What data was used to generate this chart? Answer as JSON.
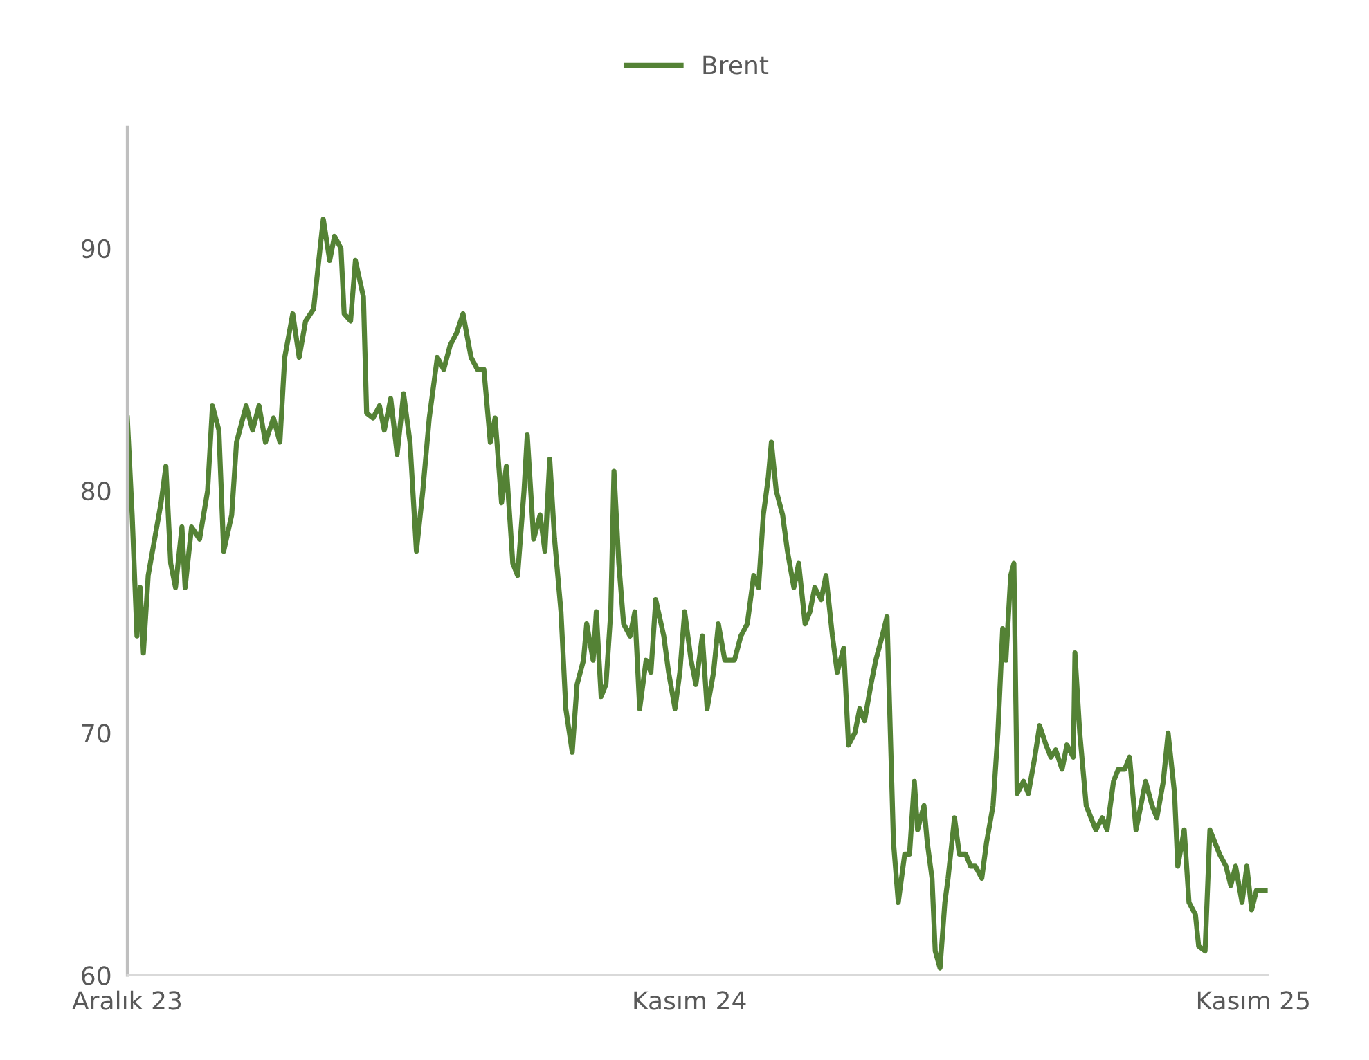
{
  "chart_data": {
    "type": "line",
    "legend": "top",
    "grid": false,
    "marker": "none",
    "line_style": "solid",
    "ylim": [
      60,
      95
    ],
    "yticks": [
      60,
      70,
      80,
      90
    ],
    "xlim": [
      "2023-12-01",
      "2025-11-10"
    ],
    "xticks": [
      {
        "value": "2023-12-01",
        "label": "Aralık 23"
      },
      {
        "value": "2024-11-15",
        "label": "Kasım 24"
      },
      {
        "value": "2025-11-01",
        "label": "Kasım 25"
      }
    ],
    "series": [
      {
        "name": "Brent",
        "color": "#548235",
        "x": [
          "2023-12-01",
          "2023-12-04",
          "2023-12-07",
          "2023-12-09",
          "2023-12-11",
          "2023-12-14",
          "2023-12-18",
          "2023-12-22",
          "2023-12-25",
          "2023-12-28",
          "2023-12-31",
          "2024-01-04",
          "2024-01-06",
          "2024-01-10",
          "2024-01-15",
          "2024-01-20",
          "2024-01-23",
          "2024-01-27",
          "2024-01-30",
          "2024-02-04",
          "2024-02-07",
          "2024-02-13",
          "2024-02-17",
          "2024-02-21",
          "2024-02-25",
          "2024-03-01",
          "2024-03-05",
          "2024-03-08",
          "2024-03-13",
          "2024-03-17",
          "2024-03-21",
          "2024-03-26",
          "2024-03-30",
          "2024-04-01",
          "2024-04-05",
          "2024-04-08",
          "2024-04-12",
          "2024-04-14",
          "2024-04-18",
          "2024-04-21",
          "2024-04-26",
          "2024-04-28",
          "2024-05-02",
          "2024-05-06",
          "2024-05-09",
          "2024-05-13",
          "2024-05-17",
          "2024-05-21",
          "2024-05-25",
          "2024-05-29",
          "2024-06-02",
          "2024-06-06",
          "2024-06-11",
          "2024-06-15",
          "2024-06-19",
          "2024-06-23",
          "2024-06-27",
          "2024-07-02",
          "2024-07-06",
          "2024-07-10",
          "2024-07-14",
          "2024-07-17",
          "2024-07-21",
          "2024-07-24",
          "2024-07-28",
          "2024-07-31",
          "2024-08-04",
          "2024-08-06",
          "2024-08-10",
          "2024-08-14",
          "2024-08-17",
          "2024-08-20",
          "2024-08-23",
          "2024-08-27",
          "2024-08-30",
          "2024-09-03",
          "2024-09-06",
          "2024-09-10",
          "2024-09-12",
          "2024-09-16",
          "2024-09-18",
          "2024-09-21",
          "2024-09-24",
          "2024-09-27",
          "2024-09-29",
          "2024-10-02",
          "2024-10-05",
          "2024-10-09",
          "2024-10-12",
          "2024-10-15",
          "2024-10-19",
          "2024-10-22",
          "2024-10-25",
          "2024-10-30",
          "2024-11-02",
          "2024-11-06",
          "2024-11-09",
          "2024-11-12",
          "2024-11-16",
          "2024-11-19",
          "2024-11-23",
          "2024-11-26",
          "2024-11-30",
          "2024-12-03",
          "2024-12-07",
          "2024-12-13",
          "2024-12-17",
          "2024-12-21",
          "2024-12-25",
          "2024-12-28",
          "2024-12-31",
          "2025-01-03",
          "2025-01-05",
          "2025-01-08",
          "2025-01-12",
          "2025-01-15",
          "2025-01-19",
          "2025-01-22",
          "2025-01-26",
          "2025-01-29",
          "2025-02-01",
          "2025-02-05",
          "2025-02-08",
          "2025-02-12",
          "2025-02-15",
          "2025-02-19",
          "2025-02-22",
          "2025-02-26",
          "2025-03-01",
          "2025-03-04",
          "2025-03-08",
          "2025-03-11",
          "2025-03-15",
          "2025-03-18",
          "2025-03-22",
          "2025-03-25",
          "2025-03-29",
          "2025-04-01",
          "2025-04-04",
          "2025-04-06",
          "2025-04-10",
          "2025-04-12",
          "2025-04-15",
          "2025-04-17",
          "2025-04-20",
          "2025-04-23",
          "2025-04-25",
          "2025-04-29",
          "2025-05-02",
          "2025-05-06",
          "2025-05-09",
          "2025-05-12",
          "2025-05-16",
          "2025-05-19",
          "2025-05-23",
          "2025-05-26",
          "2025-05-29",
          "2025-05-31",
          "2025-06-03",
          "2025-06-05",
          "2025-06-07",
          "2025-06-11",
          "2025-06-14",
          "2025-06-18",
          "2025-06-21",
          "2025-06-25",
          "2025-06-28",
          "2025-07-01",
          "2025-07-05",
          "2025-07-08",
          "2025-07-12",
          "2025-07-13",
          "2025-07-16",
          "2025-07-20",
          "2025-07-23",
          "2025-07-26",
          "2025-07-30",
          "2025-08-02",
          "2025-08-06",
          "2025-08-09",
          "2025-08-13",
          "2025-08-16",
          "2025-08-20",
          "2025-08-23",
          "2025-08-26",
          "2025-08-30",
          "2025-09-02",
          "2025-09-06",
          "2025-09-09",
          "2025-09-13",
          "2025-09-15",
          "2025-09-19",
          "2025-09-22",
          "2025-09-26",
          "2025-09-28",
          "2025-10-02",
          "2025-10-05",
          "2025-10-08",
          "2025-10-11",
          "2025-10-15",
          "2025-10-18",
          "2025-10-21",
          "2025-10-25",
          "2025-10-28",
          "2025-10-31",
          "2025-11-03",
          "2025-11-08",
          "2025-11-10"
        ],
        "values": [
          83,
          79,
          74,
          76,
          73.3,
          76.5,
          78,
          79.5,
          81,
          77,
          76,
          78.5,
          76,
          78.5,
          78,
          80,
          83.5,
          82.5,
          77.5,
          79,
          82,
          83.5,
          82.5,
          83.5,
          82,
          83,
          82,
          85.5,
          87.3,
          85.5,
          87,
          87.5,
          90,
          91.2,
          89.5,
          90.5,
          90,
          87.3,
          87,
          89.5,
          88,
          83.2,
          83,
          83.5,
          82.5,
          83.8,
          81.5,
          84,
          82,
          77.5,
          80,
          83,
          85.5,
          85,
          86,
          86.5,
          87.3,
          85.5,
          85,
          85,
          82,
          83,
          79.5,
          81,
          77,
          76.5,
          80,
          82.3,
          78,
          79,
          77.5,
          81.3,
          78,
          75,
          71,
          69.2,
          72,
          73,
          74.5,
          73,
          75,
          71.5,
          72,
          75,
          80.8,
          77,
          74.5,
          74,
          75,
          71,
          73,
          72.5,
          75.5,
          74,
          72.5,
          71,
          72.5,
          75,
          73,
          72,
          74,
          71,
          72.5,
          74.5,
          73,
          73,
          74,
          74.5,
          76.5,
          76,
          79,
          80.5,
          82,
          80,
          79,
          77.5,
          76,
          77,
          74.5,
          75,
          76,
          75.5,
          76.5,
          74,
          72.5,
          73.5,
          69.5,
          70,
          71,
          70.5,
          72,
          73,
          74,
          74.8,
          65.5,
          63,
          65,
          65,
          68,
          66,
          67,
          65.5,
          64,
          61,
          60.3,
          63,
          64,
          66.5,
          65,
          65,
          64.5,
          64.5,
          64,
          65.5,
          67,
          70,
          74.3,
          73,
          76.5,
          77,
          67.5,
          68,
          67.5,
          69,
          70.3,
          69.5,
          69,
          69.3,
          68.5,
          69.5,
          69,
          73.3,
          70,
          67,
          66.5,
          66,
          66.5,
          66,
          68,
          68.5,
          68.5,
          69,
          66,
          67,
          68,
          67,
          66.5,
          68,
          70,
          67.5,
          64.5,
          66,
          63,
          62.5,
          61.2,
          61,
          66,
          65.5,
          65,
          64.5,
          63.7,
          64.5,
          63,
          64.5,
          62.7,
          63.5,
          63.5,
          63.5
        ]
      }
    ]
  }
}
